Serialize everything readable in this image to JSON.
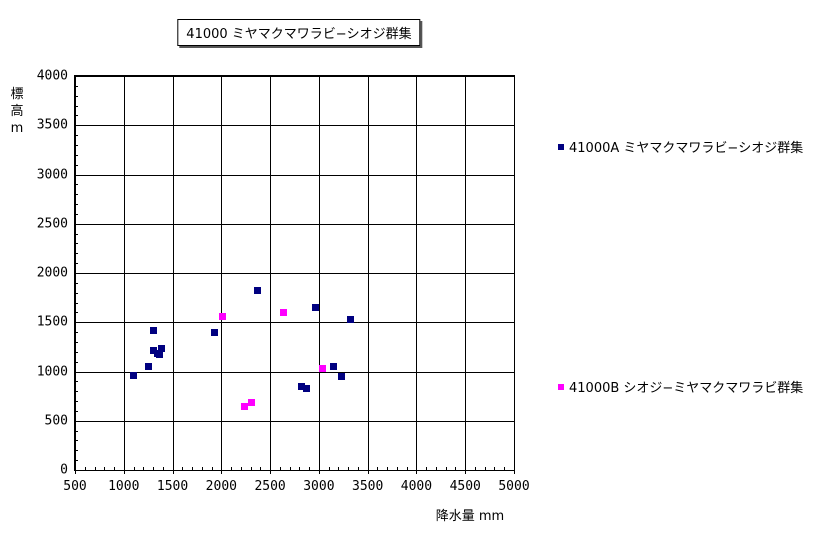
{
  "title": "41000 ミヤマクマワラビ−シオジ群集",
  "colors": {
    "series_a": "#000080",
    "series_b": "#FF00FF",
    "grid": "#000000",
    "background": "#FFFFFF"
  },
  "chart_data": {
    "type": "scatter",
    "title": "41000 ミヤマクマワラビ−シオジ群集",
    "xlabel": "降水量 mm",
    "ylabel": "標高 m",
    "xlim": [
      500,
      5000
    ],
    "ylim": [
      0,
      4000
    ],
    "x_ticks": [
      500,
      1000,
      1500,
      2000,
      2500,
      3000,
      3500,
      4000,
      4500,
      5000
    ],
    "y_ticks": [
      0,
      500,
      1000,
      1500,
      2000,
      2500,
      3000,
      3500,
      4000
    ],
    "x_minor_step": 100,
    "y_minor_step": 100,
    "grid": true,
    "legend_position": "right",
    "series": [
      {
        "name": "41000A ミヤマクマワラビ−シオジ群集",
        "color": "#000080",
        "marker": "square",
        "points": [
          [
            1100,
            960
          ],
          [
            1250,
            1050
          ],
          [
            1300,
            1420
          ],
          [
            1300,
            1210
          ],
          [
            1350,
            1180
          ],
          [
            1390,
            1230
          ],
          [
            1370,
            1170
          ],
          [
            1930,
            1400
          ],
          [
            2370,
            1820
          ],
          [
            2820,
            850
          ],
          [
            2870,
            830
          ],
          [
            2970,
            1650
          ],
          [
            3150,
            1050
          ],
          [
            3230,
            950
          ],
          [
            3320,
            1530
          ]
        ]
      },
      {
        "name": "41000B シオジ−ミヤマクマワラビ群集",
        "color": "#FF00FF",
        "marker": "square",
        "points": [
          [
            2010,
            1560
          ],
          [
            2240,
            640
          ],
          [
            2310,
            690
          ],
          [
            2640,
            1600
          ],
          [
            3040,
            1030
          ]
        ]
      }
    ]
  }
}
